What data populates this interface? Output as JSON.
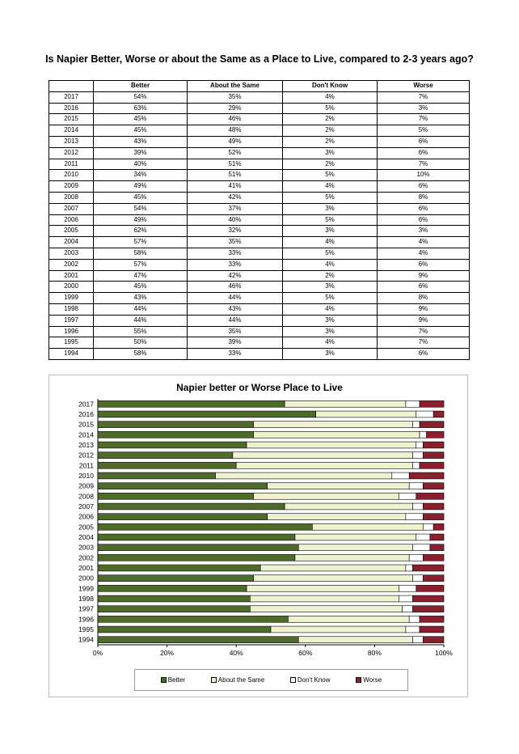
{
  "title": "Is Napier Better, Worse or about the Same as a Place to Live, compared to 2-3 years ago?",
  "table": {
    "headers": [
      "",
      "Better",
      "About the Same",
      "Don't Know",
      "Worse"
    ],
    "rows": [
      [
        "2017",
        "54%",
        "35%",
        "4%",
        "7%"
      ],
      [
        "2016",
        "63%",
        "29%",
        "5%",
        "3%"
      ],
      [
        "2015",
        "45%",
        "46%",
        "2%",
        "7%"
      ],
      [
        "2014",
        "45%",
        "48%",
        "2%",
        "5%"
      ],
      [
        "2013",
        "43%",
        "49%",
        "2%",
        "6%"
      ],
      [
        "2012",
        "39%",
        "52%",
        "3%",
        "6%"
      ],
      [
        "2011",
        "40%",
        "51%",
        "2%",
        "7%"
      ],
      [
        "2010",
        "34%",
        "51%",
        "5%",
        "10%"
      ],
      [
        "2009",
        "49%",
        "41%",
        "4%",
        "6%"
      ],
      [
        "2008",
        "45%",
        "42%",
        "5%",
        "8%"
      ],
      [
        "2007",
        "54%",
        "37%",
        "3%",
        "6%"
      ],
      [
        "2006",
        "49%",
        "40%",
        "5%",
        "6%"
      ],
      [
        "2005",
        "62%",
        "32%",
        "3%",
        "3%"
      ],
      [
        "2004",
        "57%",
        "35%",
        "4%",
        "4%"
      ],
      [
        "2003",
        "58%",
        "33%",
        "5%",
        "4%"
      ],
      [
        "2002",
        "57%",
        "33%",
        "4%",
        "6%"
      ],
      [
        "2001",
        "47%",
        "42%",
        "2%",
        "9%"
      ],
      [
        "2000",
        "45%",
        "46%",
        "3%",
        "6%"
      ],
      [
        "1999",
        "43%",
        "44%",
        "5%",
        "8%"
      ],
      [
        "1998",
        "44%",
        "43%",
        "4%",
        "9%"
      ],
      [
        "1997",
        "44%",
        "44%",
        "3%",
        "9%"
      ],
      [
        "1996",
        "55%",
        "35%",
        "3%",
        "7%"
      ],
      [
        "1995",
        "50%",
        "39%",
        "4%",
        "7%"
      ],
      [
        "1994",
        "58%",
        "33%",
        "3%",
        "6%"
      ]
    ]
  },
  "chart_data": {
    "type": "bar",
    "orientation": "horizontal",
    "stacked": true,
    "stack_mode": "percent",
    "title": "Napier better or Worse Place to Live",
    "categories": [
      "2017",
      "2016",
      "2015",
      "2014",
      "2013",
      "2012",
      "2011",
      "2010",
      "2009",
      "2008",
      "2007",
      "2006",
      "2005",
      "2004",
      "2003",
      "2002",
      "2001",
      "2000",
      "1999",
      "1998",
      "1997",
      "1996",
      "1995",
      "1994"
    ],
    "series": [
      {
        "name": "Better",
        "color": "#4e6b2a",
        "values": [
          54,
          63,
          45,
          45,
          43,
          39,
          40,
          34,
          49,
          45,
          54,
          49,
          62,
          57,
          58,
          57,
          47,
          45,
          43,
          44,
          44,
          55,
          50,
          58
        ]
      },
      {
        "name": "About the Same",
        "color": "#eef2cf",
        "values": [
          35,
          29,
          46,
          48,
          49,
          52,
          51,
          51,
          41,
          42,
          37,
          40,
          32,
          35,
          33,
          33,
          42,
          46,
          44,
          43,
          44,
          35,
          39,
          33
        ]
      },
      {
        "name": "Don't Know",
        "color": "#ffffff",
        "values": [
          4,
          5,
          2,
          2,
          2,
          3,
          2,
          5,
          4,
          5,
          3,
          5,
          3,
          4,
          5,
          4,
          2,
          3,
          5,
          4,
          3,
          3,
          4,
          3
        ]
      },
      {
        "name": "Worse",
        "color": "#8a1f2e",
        "values": [
          7,
          3,
          7,
          5,
          6,
          6,
          7,
          10,
          6,
          8,
          6,
          6,
          3,
          4,
          4,
          6,
          9,
          6,
          8,
          9,
          9,
          7,
          7,
          6
        ]
      }
    ],
    "xlim": [
      0,
      100
    ],
    "x_ticks": [
      "0%",
      "20%",
      "40%",
      "60%",
      "80%",
      "100%"
    ],
    "grid": false,
    "legend_position": "bottom"
  }
}
